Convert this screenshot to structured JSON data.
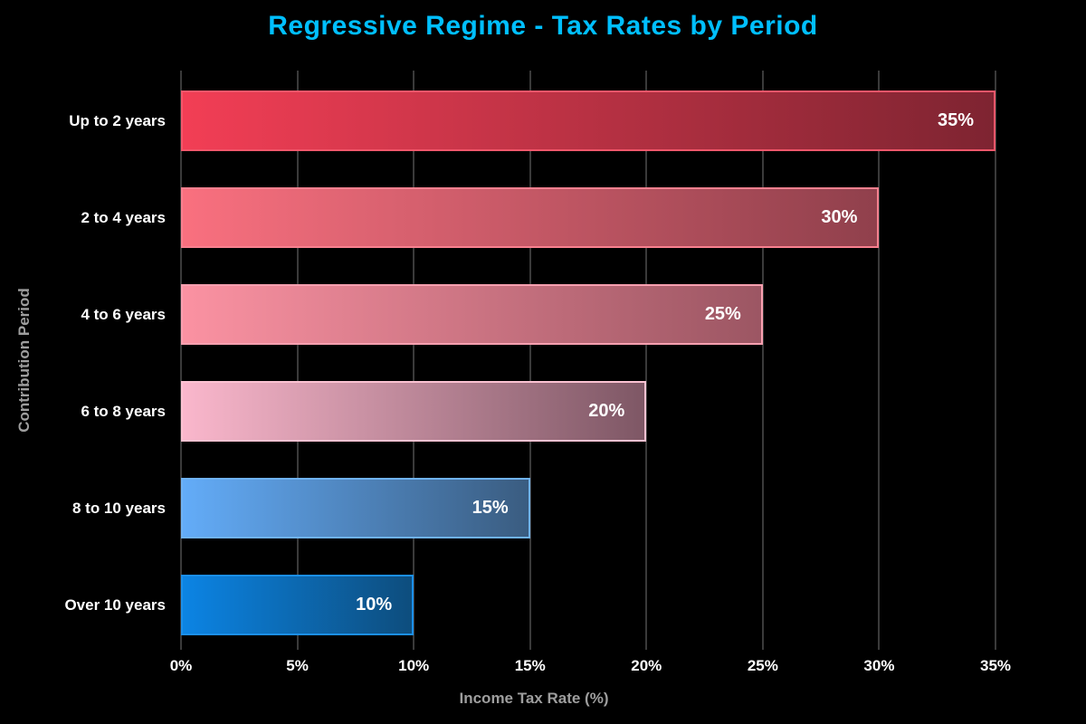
{
  "title": "Regressive Regime - Tax Rates by Period",
  "colors": {
    "background": "#000000",
    "title": "#00BFFF",
    "grid": "#3a3a3a",
    "tick_label": "#ffffff",
    "axis_label": "#9e9e9e",
    "category_label": "#ffffff",
    "value_label": "#ffffff"
  },
  "chart_data": {
    "type": "bar",
    "orientation": "horizontal",
    "title": "Regressive Regime - Tax Rates by Period",
    "xlabel": "Income Tax Rate (%)",
    "ylabel": "Contribution Period",
    "categories": [
      "Up to 2 years",
      "2 to 4 years",
      "4 to 6 years",
      "6 to 8 years",
      "8 to 10 years",
      "Over 10 years"
    ],
    "values": [
      35,
      30,
      25,
      20,
      15,
      10
    ],
    "value_labels": [
      "35%",
      "30%",
      "25%",
      "20%",
      "15%",
      "10%"
    ],
    "xlim": [
      0,
      37.3
    ],
    "x_ticks": [
      {
        "label": "0%",
        "value": 0
      },
      {
        "label": "5%",
        "value": 5
      },
      {
        "label": "10%",
        "value": 10
      },
      {
        "label": "15%",
        "value": 15
      },
      {
        "label": "20%",
        "value": 20
      },
      {
        "label": "25%",
        "value": 25
      },
      {
        "label": "30%",
        "value": 30
      },
      {
        "label": "35%",
        "value": 35
      }
    ],
    "grid": true,
    "legend": false,
    "bar_styles": [
      {
        "gradient_start": "#F23E55",
        "gradient_end": "#7E2431",
        "border": "#F4566A"
      },
      {
        "gradient_start": "#F9707F",
        "gradient_end": "#90404C",
        "border": "#F8808F"
      },
      {
        "gradient_start": "#FB92A2",
        "gradient_end": "#9C5663",
        "border": "#F9A0B0"
      },
      {
        "gradient_start": "#FAB7CC",
        "gradient_end": "#7E5765",
        "border": "#FBC2D2"
      },
      {
        "gradient_start": "#63ACF8",
        "gradient_end": "#3A5C80",
        "border": "#6FB2F4"
      },
      {
        "gradient_start": "#0C84E4",
        "gradient_end": "#0D4D7D",
        "border": "#1B8FEB"
      }
    ]
  }
}
